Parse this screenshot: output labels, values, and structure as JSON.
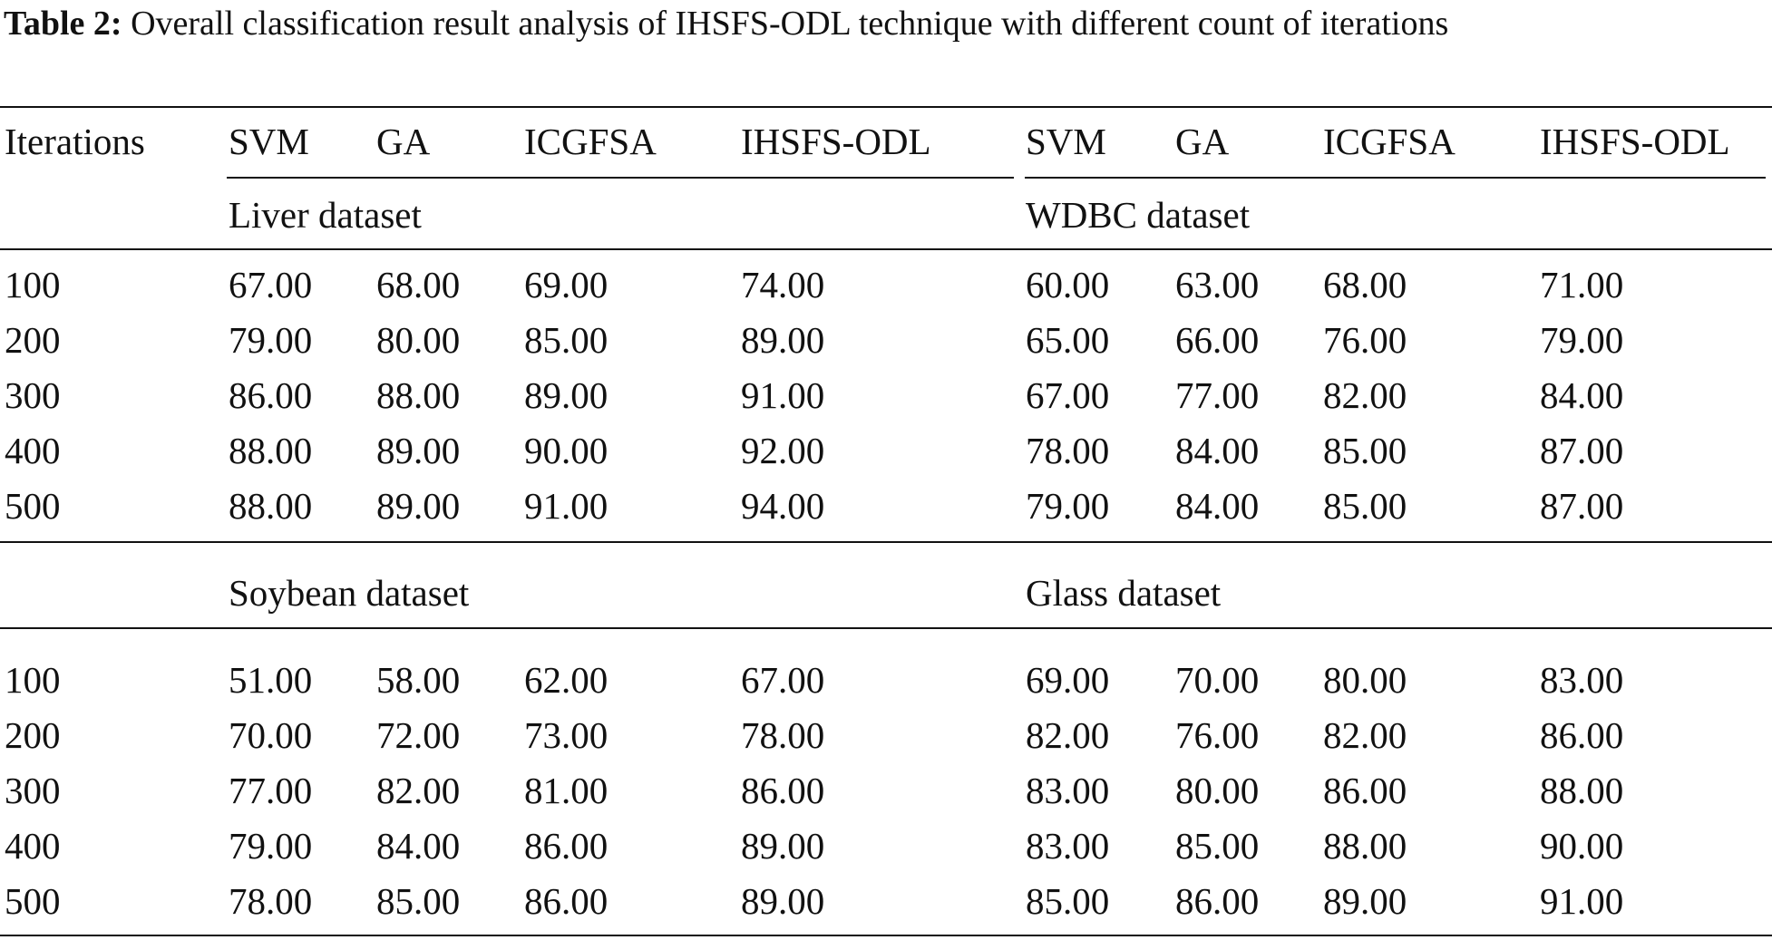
{
  "caption": {
    "label": "Table 2:",
    "text": "Overall classification result analysis of IHSFS-ODL technique with different count of iterations"
  },
  "header": {
    "first": "Iterations",
    "columns": [
      "SVM",
      "GA",
      "ICGFSA",
      "IHSFS-ODL",
      "SVM",
      "GA",
      "ICGFSA",
      "IHSFS-ODL"
    ]
  },
  "sections": [
    {
      "left_title": "Liver dataset",
      "right_title": "WDBC dataset",
      "rows": [
        [
          "100",
          "67.00",
          "68.00",
          "69.00",
          "74.00",
          "60.00",
          "63.00",
          "68.00",
          "71.00"
        ],
        [
          "200",
          "79.00",
          "80.00",
          "85.00",
          "89.00",
          "65.00",
          "66.00",
          "76.00",
          "79.00"
        ],
        [
          "300",
          "86.00",
          "88.00",
          "89.00",
          "91.00",
          "67.00",
          "77.00",
          "82.00",
          "84.00"
        ],
        [
          "400",
          "88.00",
          "89.00",
          "90.00",
          "92.00",
          "78.00",
          "84.00",
          "85.00",
          "87.00"
        ],
        [
          "500",
          "88.00",
          "89.00",
          "91.00",
          "94.00",
          "79.00",
          "84.00",
          "85.00",
          "87.00"
        ]
      ]
    },
    {
      "left_title": "Soybean dataset",
      "right_title": "Glass dataset",
      "rows": [
        [
          "100",
          "51.00",
          "58.00",
          "62.00",
          "67.00",
          "69.00",
          "70.00",
          "80.00",
          "83.00"
        ],
        [
          "200",
          "70.00",
          "72.00",
          "73.00",
          "78.00",
          "82.00",
          "76.00",
          "82.00",
          "86.00"
        ],
        [
          "300",
          "77.00",
          "82.00",
          "81.00",
          "86.00",
          "83.00",
          "80.00",
          "86.00",
          "88.00"
        ],
        [
          "400",
          "79.00",
          "84.00",
          "86.00",
          "89.00",
          "83.00",
          "85.00",
          "88.00",
          "90.00"
        ],
        [
          "500",
          "78.00",
          "85.00",
          "86.00",
          "89.00",
          "85.00",
          "86.00",
          "89.00",
          "91.00"
        ]
      ]
    }
  ]
}
